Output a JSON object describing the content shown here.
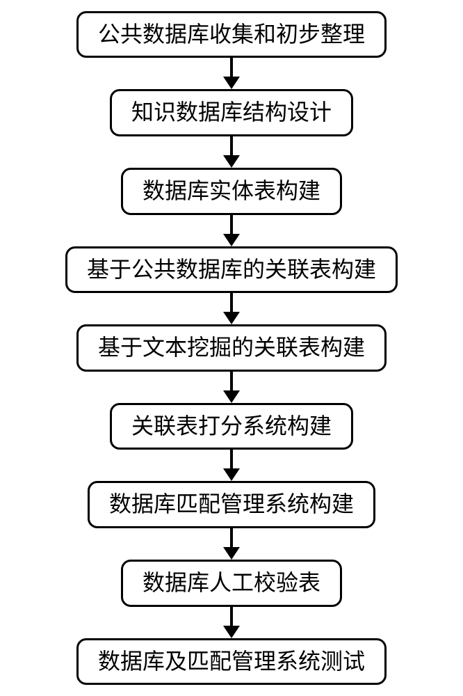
{
  "flowchart": {
    "type": "flowchart",
    "direction": "vertical",
    "nodes": [
      {
        "label": "公共数据库收集和初步整理"
      },
      {
        "label": "知识数据库结构设计"
      },
      {
        "label": "数据库实体表构建"
      },
      {
        "label": "基于公共数据库的关联表构建"
      },
      {
        "label": "基于文本挖掘的关联表构建"
      },
      {
        "label": "关联表打分系统构建"
      },
      {
        "label": "数据库匹配管理系统构建"
      },
      {
        "label": "数据库人工校验表"
      },
      {
        "label": "数据库及匹配管理系统测试"
      }
    ],
    "node_style": {
      "border_color": "#000000",
      "border_width": 3,
      "border_radius": 14,
      "background_color": "#ffffff",
      "text_color": "#000000",
      "font_size": 32,
      "padding_x": 28,
      "padding_y": 10
    },
    "arrow_style": {
      "color": "#000000",
      "line_width": 4,
      "line_height": 28,
      "head_width": 24,
      "head_height": 18
    },
    "background_color": "#ffffff"
  }
}
